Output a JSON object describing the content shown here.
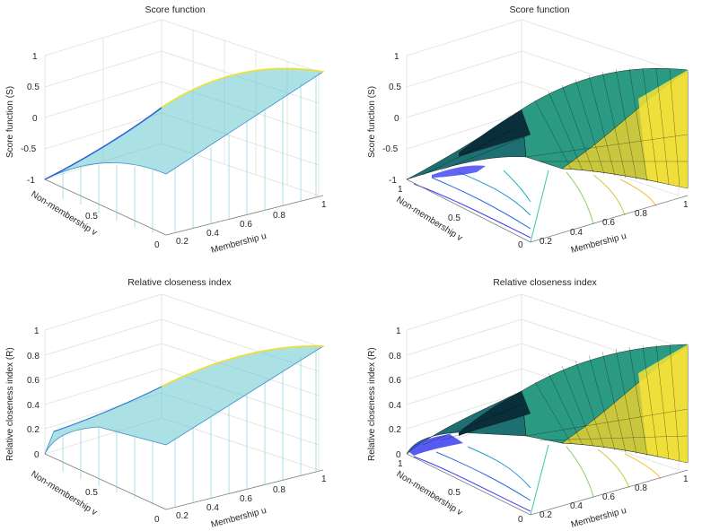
{
  "figure": {
    "panel_1_title": "Score function",
    "panel_2_title": "Score function",
    "panel_3_title": "Relative closeness index",
    "panel_4_title": "Relative closeness index"
  },
  "chart_data": [
    {
      "type": "surface",
      "style": "waterfall mesh (parula colormap)",
      "title": "Score function",
      "xlabel": "Membership u",
      "ylabel": "Non-membership v",
      "zlabel": "Score function (S)",
      "x_ticks": [
        "0.2",
        "0.4",
        "0.6",
        "0.8",
        "1"
      ],
      "y_ticks": [
        "0",
        "0.5",
        "1"
      ],
      "z_ticks": [
        "-1",
        "-0.5",
        "0",
        "0.5",
        "1"
      ],
      "xlim": [
        0,
        1
      ],
      "ylim": [
        0,
        1
      ],
      "zlim": [
        -1,
        1
      ],
      "surface_points": [
        {
          "u": 0.0,
          "v": 1.0,
          "z": -1.0
        },
        {
          "u": 0.0,
          "v": 0.5,
          "z": -0.5
        },
        {
          "u": 0.0,
          "v": 0.0,
          "z": 0.0
        },
        {
          "u": 0.5,
          "v": 0.5,
          "z": 0.0
        },
        {
          "u": 0.5,
          "v": 0.0,
          "z": 0.5
        },
        {
          "u": 1.0,
          "v": 0.0,
          "z": 1.0
        }
      ]
    },
    {
      "type": "surface",
      "style": "surfc with contours (parula colormap)",
      "title": "Score function",
      "xlabel": "Membership u",
      "ylabel": "Non-membership v",
      "zlabel": "Score function (S)",
      "x_ticks": [
        "0",
        "0.2",
        "0.4",
        "0.6",
        "0.8",
        "1"
      ],
      "y_ticks": [
        "0.5",
        "1"
      ],
      "z_ticks": [
        "-1",
        "-0.5",
        "0",
        "0.5",
        "1"
      ],
      "xlim": [
        0,
        1
      ],
      "ylim": [
        0,
        1
      ],
      "zlim": [
        -1,
        1
      ],
      "surface_points": [
        {
          "u": 0.0,
          "v": 1.0,
          "z": -1.0
        },
        {
          "u": 0.0,
          "v": 0.0,
          "z": 0.0
        },
        {
          "u": 0.5,
          "v": 0.5,
          "z": 0.0
        },
        {
          "u": 1.0,
          "v": 0.0,
          "z": 1.0
        }
      ]
    },
    {
      "type": "surface",
      "style": "waterfall mesh (parula colormap)",
      "title": "Relative closeness index",
      "xlabel": "Membership u",
      "ylabel": "Non-membership v",
      "zlabel": "Relative closeness index (R)",
      "x_ticks": [
        "0.2",
        "0.4",
        "0.6",
        "0.8",
        "1"
      ],
      "y_ticks": [
        "0",
        "0.5",
        "1"
      ],
      "z_ticks": [
        "0",
        "0.2",
        "0.4",
        "0.6",
        "0.8",
        "1"
      ],
      "xlim": [
        0,
        1
      ],
      "ylim": [
        0,
        1
      ],
      "zlim": [
        0,
        1
      ],
      "surface_points": [
        {
          "u": 0.0,
          "v": 1.0,
          "z": 0.0
        },
        {
          "u": 0.0,
          "v": 0.0,
          "z": 0.5
        },
        {
          "u": 0.5,
          "v": 0.0,
          "z": 0.67
        },
        {
          "u": 1.0,
          "v": 0.0,
          "z": 0.9
        }
      ]
    },
    {
      "type": "surface",
      "style": "surfc with contours (parula colormap)",
      "title": "Relative closeness index",
      "xlabel": "Membership u",
      "ylabel": "Non-membership v",
      "zlabel": "Relative closeness index (R)",
      "x_ticks": [
        "0",
        "0.2",
        "0.4",
        "0.6",
        "0.8",
        "1"
      ],
      "y_ticks": [
        "0.5",
        "1"
      ],
      "z_ticks": [
        "0",
        "0.2",
        "0.4",
        "0.6",
        "0.8",
        "1"
      ],
      "xlim": [
        0,
        1
      ],
      "ylim": [
        0,
        1
      ],
      "zlim": [
        0,
        1
      ],
      "surface_points": [
        {
          "u": 0.0,
          "v": 1.0,
          "z": 0.0
        },
        {
          "u": 0.0,
          "v": 0.0,
          "z": 0.5
        },
        {
          "u": 1.0,
          "v": 0.0,
          "z": 0.9
        }
      ]
    }
  ]
}
